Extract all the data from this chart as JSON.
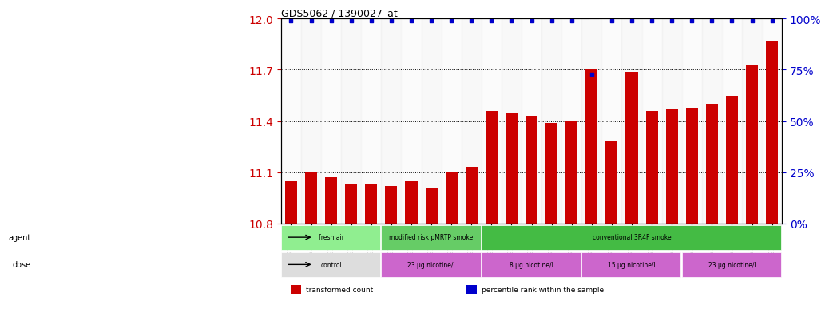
{
  "title": "GDS5062 / 1390027_at",
  "samples": [
    "GSM1217181",
    "GSM1217182",
    "GSM1217183",
    "GSM1217184",
    "GSM1217185",
    "GSM1217186",
    "GSM1217187",
    "GSM1217188",
    "GSM1217189",
    "GSM1217190",
    "GSM1217196",
    "GSM1217197",
    "GSM1217198",
    "GSM1217199",
    "GSM1217200",
    "GSM1217191",
    "GSM1217192",
    "GSM1217193",
    "GSM1217194",
    "GSM1217195",
    "GSM1217201",
    "GSM1217202",
    "GSM1217203",
    "GSM1217204",
    "GSM1217205"
  ],
  "transformed_counts": [
    11.05,
    11.1,
    11.07,
    11.03,
    11.03,
    11.02,
    11.05,
    11.01,
    11.1,
    11.13,
    11.46,
    11.45,
    11.43,
    11.39,
    11.4,
    11.7,
    11.28,
    11.69,
    11.46,
    11.47,
    11.48,
    11.5,
    11.55,
    11.73,
    11.87
  ],
  "percentile_ranks": [
    99,
    99,
    99,
    99,
    99,
    99,
    99,
    99,
    99,
    99,
    99,
    99,
    99,
    99,
    99,
    73,
    99,
    99,
    99,
    99,
    99,
    99,
    99,
    99,
    99
  ],
  "bar_color": "#cc0000",
  "dot_color": "#0000cc",
  "ylim_left": [
    10.8,
    12.0
  ],
  "ylim_right": [
    0,
    100
  ],
  "yticks_left": [
    10.8,
    11.1,
    11.4,
    11.7,
    12.0
  ],
  "yticks_right": [
    0,
    25,
    50,
    75,
    100
  ],
  "agent_groups": [
    {
      "label": "fresh air",
      "start": 0,
      "end": 5,
      "color": "#90ee90"
    },
    {
      "label": "modified risk pMRTP smoke",
      "start": 5,
      "end": 10,
      "color": "#66cc66"
    },
    {
      "label": "conventional 3R4F smoke",
      "start": 10,
      "end": 25,
      "color": "#44bb44"
    }
  ],
  "dose_groups": [
    {
      "label": "control",
      "start": 0,
      "end": 5,
      "color": "#dddddd"
    },
    {
      "label": "23 μg nicotine/l",
      "start": 5,
      "end": 10,
      "color": "#cc66cc"
    },
    {
      "label": "8 μg nicotine/l",
      "start": 10,
      "end": 15,
      "color": "#cc66cc"
    },
    {
      "label": "15 μg nicotine/l",
      "start": 15,
      "end": 20,
      "color": "#cc66cc"
    },
    {
      "label": "23 μg nicotine/l",
      "start": 20,
      "end": 25,
      "color": "#cc66cc"
    }
  ],
  "legend_items": [
    {
      "label": "transformed count",
      "color": "#cc0000",
      "marker": "s"
    },
    {
      "label": "percentile rank within the sample",
      "color": "#0000cc",
      "marker": "s"
    }
  ]
}
